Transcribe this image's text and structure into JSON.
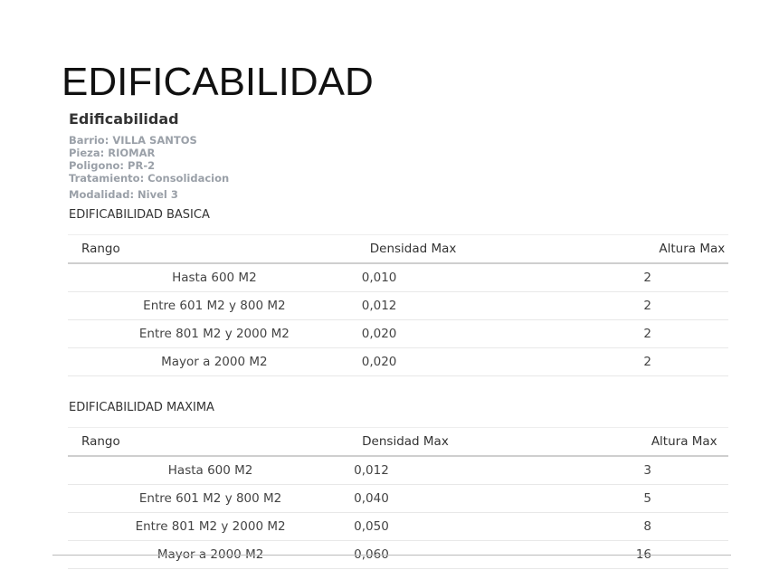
{
  "slide_title": "EDIFICABILIDAD",
  "card_title": "Edificabilidad",
  "meta": {
    "barrio": "Barrio: VILLA SANTOS",
    "pieza": "Pieza: RIOMAR",
    "poligono": "Poligono: PR-2",
    "tratamiento": "Tratamiento: Consolidacion",
    "modalidad": "Modalidad: Nivel 3"
  },
  "basica": {
    "title": "EDIFICABILIDAD BASICA",
    "headers": [
      "Rango",
      "Densidad Max",
      "Altura Max"
    ],
    "rows": [
      [
        "Hasta 600 M2",
        "0,010",
        "2"
      ],
      [
        "Entre 601 M2 y 800 M2",
        "0,012",
        "2"
      ],
      [
        "Entre 801 M2 y 2000 M2",
        "0,020",
        "2"
      ],
      [
        "Mayor a 2000 M2",
        "0,020",
        "2"
      ]
    ]
  },
  "maxima": {
    "title": "EDIFICABILIDAD MAXIMA",
    "headers": [
      "Rango",
      "Densidad Max",
      "Altura Max"
    ],
    "rows": [
      [
        "Hasta 600 M2",
        "0,012",
        "3"
      ],
      [
        "Entre 601 M2 y 800 M2",
        "0,040",
        "5"
      ],
      [
        "Entre 801 M2 y 2000 M2",
        "0,050",
        "8"
      ],
      [
        "Mayor a 2000 M2",
        "0,060",
        "16"
      ]
    ]
  }
}
